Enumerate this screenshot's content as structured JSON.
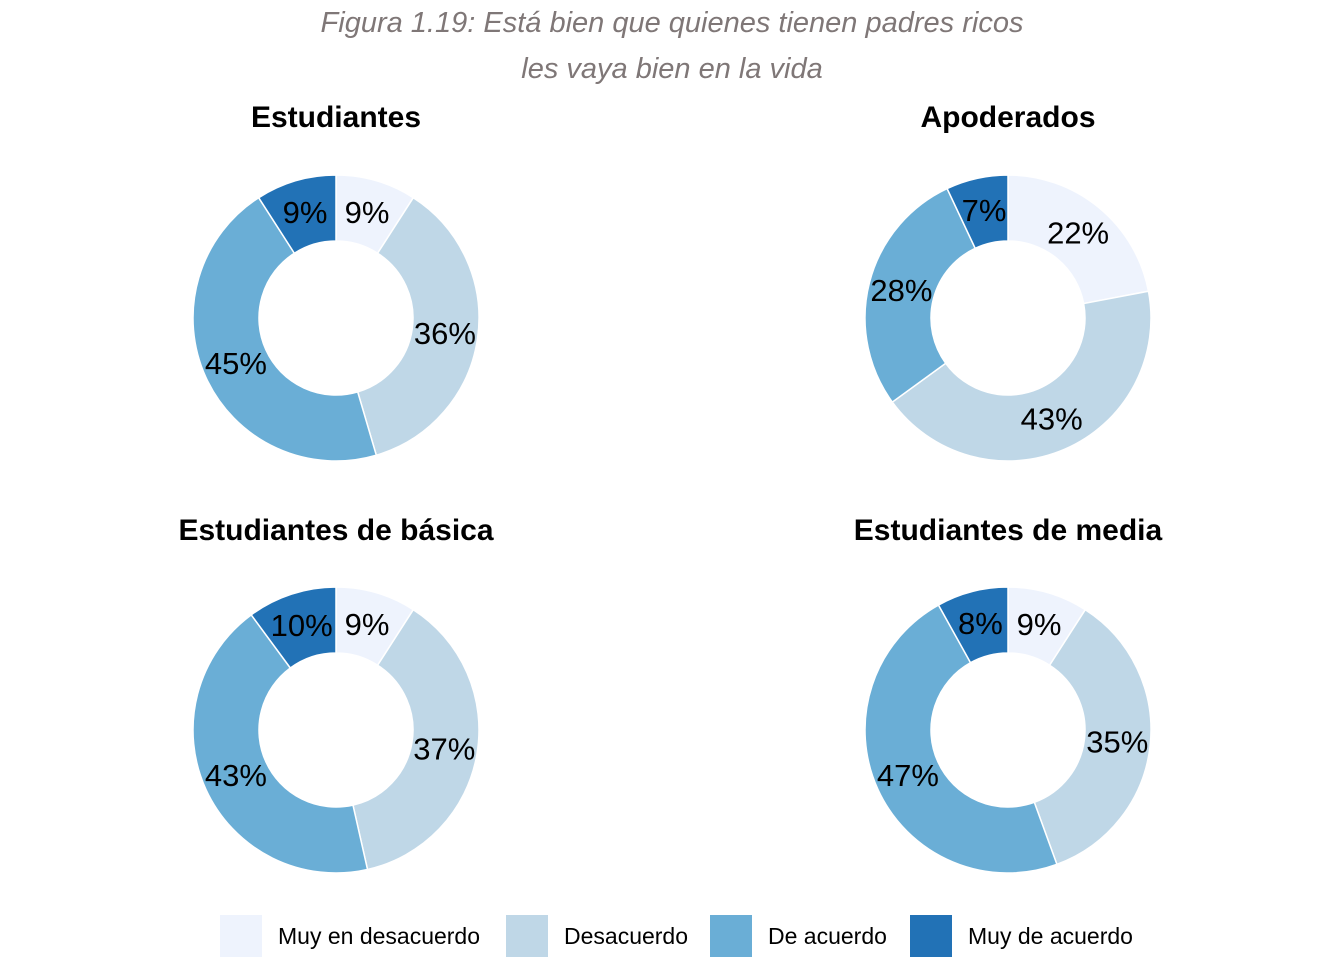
{
  "figure": {
    "title_line1": "Figura 1.19:  Está bien que quienes tienen padres ricos",
    "title_line2": "les vaya bien en la vida"
  },
  "legend": {
    "items": [
      {
        "label": "Muy en desacuerdo",
        "color": "#eef3fd"
      },
      {
        "label": "Desacuerdo",
        "color": "#bfd7e7"
      },
      {
        "label": "De acuerdo",
        "color": "#6aaed6"
      },
      {
        "label": "Muy de acuerdo",
        "color": "#2272b6"
      }
    ]
  },
  "chart_data": [
    {
      "type": "pie",
      "title": "Estudiantes",
      "categories": [
        "Muy en desacuerdo",
        "Desacuerdo",
        "De acuerdo",
        "Muy de acuerdo"
      ],
      "values": [
        9,
        36,
        45,
        9
      ],
      "labels": [
        "9%",
        "36%",
        "45%",
        "9%"
      ]
    },
    {
      "type": "pie",
      "title": "Apoderados",
      "categories": [
        "Muy en desacuerdo",
        "Desacuerdo",
        "De acuerdo",
        "Muy de acuerdo"
      ],
      "values": [
        22,
        43,
        28,
        7
      ],
      "labels": [
        "22%",
        "43%",
        "28%",
        "7%"
      ]
    },
    {
      "type": "pie",
      "title": "Estudiantes de básica",
      "categories": [
        "Muy en desacuerdo",
        "Desacuerdo",
        "De acuerdo",
        "Muy de acuerdo"
      ],
      "values": [
        9,
        37,
        43,
        10
      ],
      "labels": [
        "9%",
        "37%",
        "43%",
        "10%"
      ]
    },
    {
      "type": "pie",
      "title": "Estudiantes de media",
      "categories": [
        "Muy en desacuerdo",
        "Desacuerdo",
        "De acuerdo",
        "Muy de acuerdo"
      ],
      "values": [
        9,
        35,
        47,
        8
      ],
      "labels": [
        "9%",
        "35%",
        "47%",
        "8%"
      ]
    }
  ]
}
